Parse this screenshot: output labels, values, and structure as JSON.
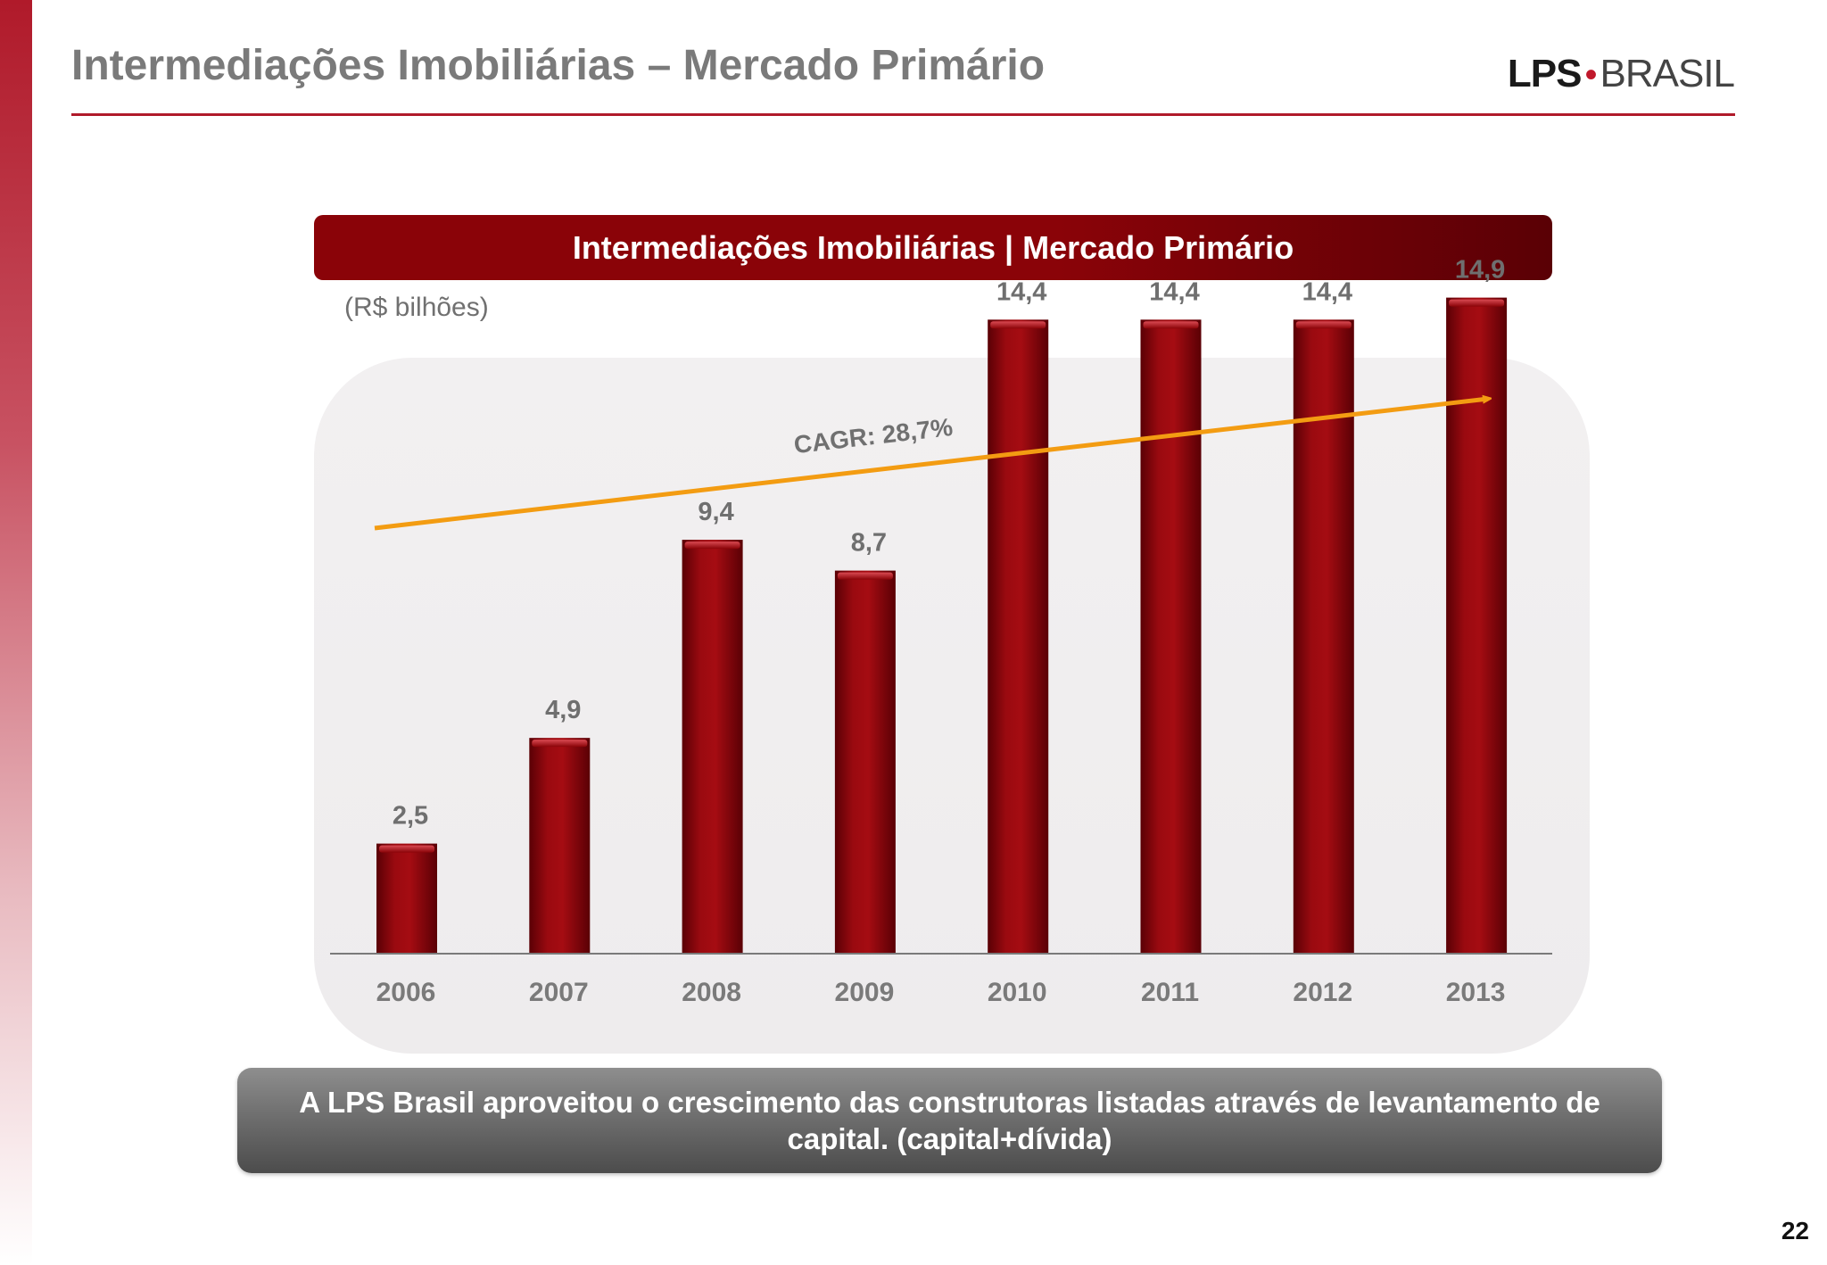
{
  "slide": {
    "title": "Intermediações Imobiliárias – Mercado Primário",
    "logo": {
      "part1": "LPS",
      "separator": "•",
      "part2": "BRASIL"
    },
    "page_number": "22",
    "footer_text": "A LPS Brasil aproveitou o crescimento das construtoras listadas através de levantamento de capital.  (capital+dívida)"
  },
  "colors": {
    "accent": "#b01a2a",
    "bar": "#8a0308",
    "trend_arrow": "#f39c12"
  },
  "chart_data": {
    "type": "bar",
    "title": "Intermediações Imobiliárias | Mercado Primário",
    "unit_label": "(R$ bilhões)",
    "categories": [
      "2006",
      "2007",
      "2008",
      "2009",
      "2010",
      "2011",
      "2012",
      "2013"
    ],
    "values": [
      2.5,
      4.9,
      9.4,
      8.7,
      14.4,
      14.4,
      14.4,
      14.9
    ],
    "value_labels": [
      "2,5",
      "4,9",
      "9,4",
      "8,7",
      "14,4",
      "14,4",
      "14,4",
      "14,9"
    ],
    "annotation": "CAGR: 28,7%",
    "ylim": [
      0,
      15.5
    ],
    "grid": false,
    "legend": "none"
  }
}
